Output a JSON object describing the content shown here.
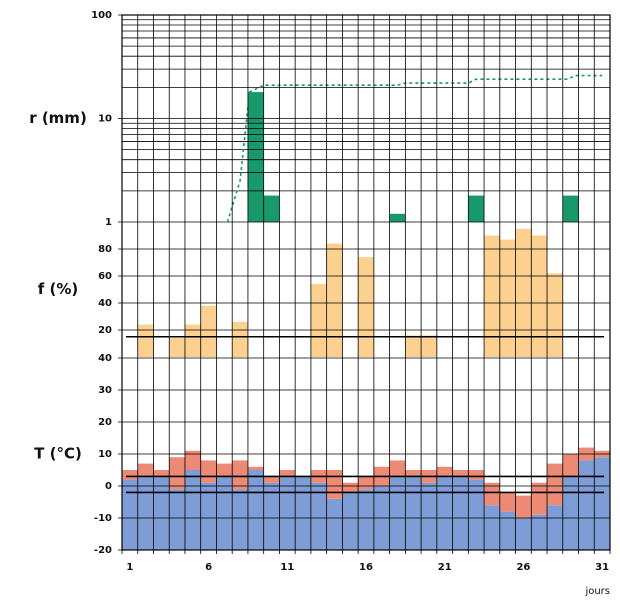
{
  "chart_data": [
    {
      "type": "bar",
      "ylabel": "r (mm)",
      "log_scale": true,
      "ylim": [
        1,
        100
      ],
      "yticks": [
        1,
        10,
        100
      ],
      "yminor": [
        2,
        3,
        4,
        5,
        6,
        7,
        8,
        9,
        20,
        30,
        40,
        50,
        60,
        70,
        80,
        90
      ],
      "x": [
        9,
        10,
        18,
        23,
        29
      ],
      "values": [
        18,
        1.8,
        1.2,
        1.8,
        1.8
      ],
      "color": "#17996b",
      "cumulative": {
        "x": [
          7.2,
          8,
          8.6,
          9.5,
          18,
          18.5,
          22.5,
          23,
          28.8,
          29.3,
          31
        ],
        "values": [
          1,
          2.5,
          18,
          21,
          21,
          22,
          22,
          24,
          24,
          26,
          26
        ],
        "color": "#17996b",
        "dashed": true
      }
    },
    {
      "type": "bar",
      "ylabel": "f (%)",
      "ylim": [
        0,
        100
      ],
      "yticks": [
        20,
        40,
        60,
        80
      ],
      "x": [
        2,
        4,
        5,
        6,
        8,
        13,
        14,
        16,
        19,
        20,
        24,
        25,
        26,
        27,
        28
      ],
      "values": [
        24,
        14,
        24,
        38,
        26,
        54,
        84,
        74,
        16,
        16,
        90,
        87,
        95,
        90,
        62
      ],
      "color": "#fcd08e",
      "reference_lines": [
        15
      ]
    },
    {
      "type": "range_bar",
      "ylabel": "T (°C)",
      "xlabel": "jours",
      "ylim": [
        -20,
        40
      ],
      "yticks": [
        -20,
        -10,
        0,
        10,
        20,
        30,
        40
      ],
      "xlim": [
        0.5,
        31.5
      ],
      "xticks": [
        1,
        6,
        11,
        16,
        21,
        26,
        31
      ],
      "x": [
        1,
        2,
        3,
        4,
        5,
        6,
        7,
        8,
        9,
        10,
        11,
        12,
        13,
        14,
        15,
        16,
        17,
        18,
        19,
        20,
        21,
        22,
        23,
        24,
        25,
        26,
        27,
        28,
        29,
        30,
        31
      ],
      "series": [
        {
          "color": "#7e9dd6",
          "values": [
            2,
            3,
            3,
            -1,
            5,
            1,
            3,
            -1,
            5,
            1,
            3,
            3,
            1,
            -4,
            -2,
            -1,
            0,
            3,
            3,
            1,
            3,
            3,
            2,
            -6,
            -8,
            -10,
            -9,
            -6,
            3,
            8,
            9
          ]
        },
        {
          "color": "#ec8a76",
          "values": [
            5,
            7,
            5,
            9,
            11,
            8,
            7,
            8,
            6,
            3,
            5,
            3,
            5,
            5,
            1,
            3,
            6,
            8,
            5,
            5,
            6,
            5,
            5,
            1,
            -2,
            -3,
            1,
            7,
            10,
            12,
            11
          ]
        }
      ],
      "reference_lines": [
        3,
        -2
      ]
    }
  ]
}
